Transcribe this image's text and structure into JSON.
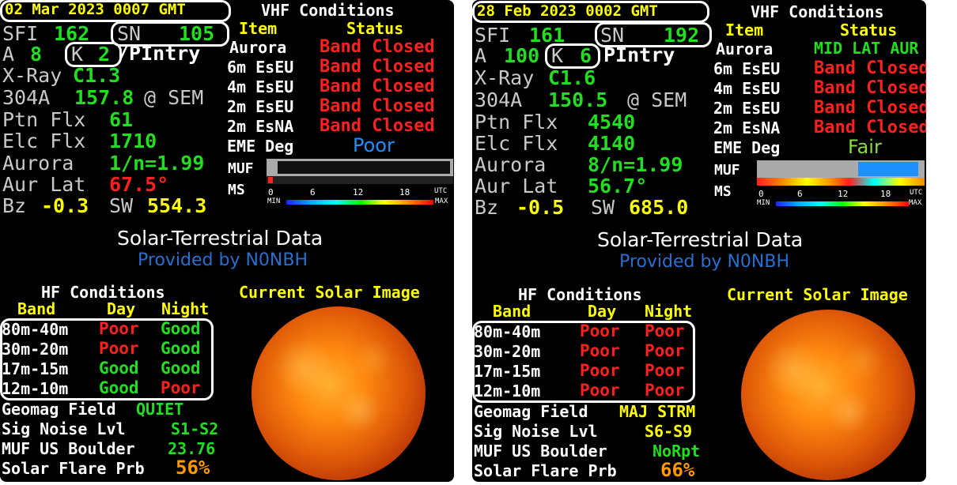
{
  "panels": [
    {
      "datetime": "02 Mar 2023 0007 GMT",
      "vhf_title": "VHF Conditions",
      "item_header": "Item",
      "status_header": "Status",
      "sfi_label": "SFI",
      "sfi": "162",
      "sn_label": "SN",
      "sn": "105",
      "a_label": "A",
      "a": "8",
      "k_label": "K",
      "k": "2",
      "k_suffix": "/PIntry",
      "xray_label": "X-Ray",
      "xray": "C1.3",
      "a304_label": "304A",
      "a304": "157.8",
      "a304_suffix": "@ SEM",
      "ptn_label": "Ptn Flx",
      "ptn": "61",
      "elc_label": "Elc Flx",
      "elc": "1710",
      "aurora_label": "Aurora",
      "aurora": "1/n=1.99",
      "aurlat_label": "Aur Lat",
      "aurlat": "67.5°",
      "bz_label": "Bz",
      "bz": "-0.3",
      "sw_label": "SW",
      "sw": "554.3",
      "vhf_items": [
        {
          "item": "Aurora",
          "status": "Band Closed"
        },
        {
          "item": "6m EsEU",
          "status": "Band Closed"
        },
        {
          "item": "4m EsEU",
          "status": "Band Closed"
        },
        {
          "item": "2m EsEU",
          "status": "Band Closed"
        },
        {
          "item": "2m EsNA",
          "status": "Band Closed"
        },
        {
          "item": "EME Deg",
          "status": "Poor"
        }
      ],
      "muf_label": "MUF",
      "ms_label": "MS",
      "scale_ticks": [
        "0",
        "6",
        "12",
        "18",
        "UTC"
      ],
      "scale_min": "MIN",
      "scale_max": "MAX",
      "title": "Solar-Terrestrial Data",
      "provider": "Provided by N0NBH",
      "hf_title": "HF Conditions",
      "band_header": "Band",
      "day_header": "Day",
      "night_header": "Night",
      "hf_rows": [
        {
          "band": "80m-40m",
          "day": "Poor",
          "night": "Good"
        },
        {
          "band": "30m-20m",
          "day": "Poor",
          "night": "Good"
        },
        {
          "band": "17m-15m",
          "day": "Good",
          "night": "Good"
        },
        {
          "band": "12m-10m",
          "day": "Good",
          "night": "Poor"
        }
      ],
      "solar_image_label": "Current Solar Image",
      "geomag_label": "Geomag Field",
      "geomag": "QUIET",
      "signoise_label": "Sig Noise Lvl",
      "signoise": "S1-S2",
      "mufus_label": "MUF US Boulder",
      "mufus": "23.76",
      "flare_label": "Solar Flare Prb",
      "flare": "56%"
    },
    {
      "datetime": "28 Feb 2023 0002 GMT",
      "vhf_title": "VHF Conditions",
      "item_header": "Item",
      "status_header": "Status",
      "sfi_label": "SFI",
      "sfi": "161",
      "sn_label": "SN",
      "sn": "192",
      "a_label": "A",
      "a": "100",
      "k_label": "K",
      "k": "6",
      "k_suffix": "PIntry",
      "xray_label": "X-Ray",
      "xray": "C1.6",
      "a304_label": "304A",
      "a304": "150.5",
      "a304_suffix": "@ SEM",
      "ptn_label": "Ptn Flx",
      "ptn": "4540",
      "elc_label": "Elc Flx",
      "elc": "4140",
      "aurora_label": "Aurora",
      "aurora": "8/n=1.99",
      "aurlat_label": "Aur Lat",
      "aurlat": "56.7°",
      "bz_label": "Bz",
      "bz": "-0.5",
      "sw_label": "SW",
      "sw": "685.0",
      "vhf_items": [
        {
          "item": "Aurora",
          "status": "MID LAT AUR"
        },
        {
          "item": "6m EsEU",
          "status": "Band Closed"
        },
        {
          "item": "4m EsEU",
          "status": "Band Closed"
        },
        {
          "item": "2m EsEU",
          "status": "Band Closed"
        },
        {
          "item": "2m EsNA",
          "status": "Band Closed"
        },
        {
          "item": "EME Deg",
          "status": "Fair"
        }
      ],
      "muf_label": "MUF",
      "ms_label": "MS",
      "scale_ticks": [
        "0",
        "6",
        "12",
        "18",
        "UTC"
      ],
      "scale_min": "MIN",
      "scale_max": "MAX",
      "title": "Solar-Terrestrial Data",
      "provider": "Provided by N0NBH",
      "hf_title": "HF Conditions",
      "band_header": "Band",
      "day_header": "Day",
      "night_header": "Night",
      "hf_rows": [
        {
          "band": "80m-40m",
          "day": "Poor",
          "night": "Poor"
        },
        {
          "band": "30m-20m",
          "day": "Poor",
          "night": "Poor"
        },
        {
          "band": "17m-15m",
          "day": "Poor",
          "night": "Poor"
        },
        {
          "band": "12m-10m",
          "day": "Poor",
          "night": "Poor"
        }
      ],
      "solar_image_label": "Current Solar Image",
      "geomag_label": "Geomag Field",
      "geomag": "MAJ STRM",
      "signoise_label": "Sig Noise Lvl",
      "signoise": "S6-S9",
      "mufus_label": "MUF US Boulder",
      "mufus": "NoRpt",
      "flare_label": "Solar Flare Prb",
      "flare": "66%"
    }
  ],
  "colors": {
    "good": "#22dd22",
    "poor": "#ff2020",
    "yellow": "#ffff00",
    "eme_poor": "#1e90ff",
    "eme_fair": "#88dd44",
    "flare": "#ff9900",
    "provider": "#2a6fd0"
  }
}
